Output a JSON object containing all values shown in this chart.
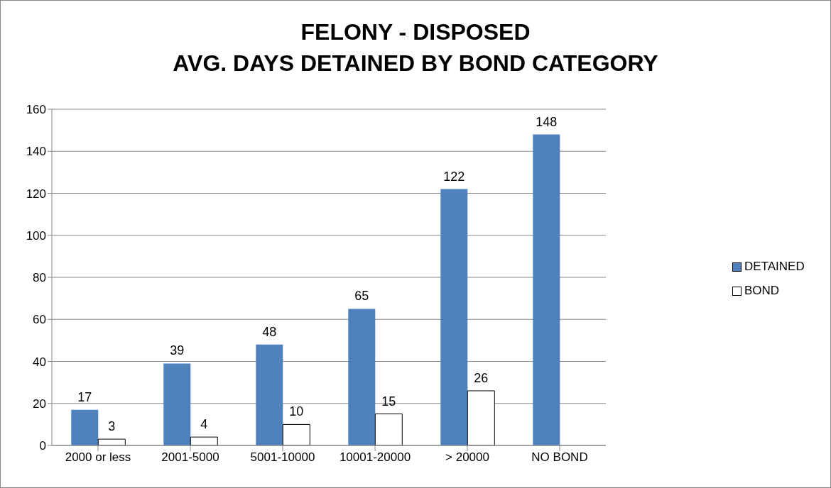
{
  "chart_data": {
    "type": "bar",
    "title": "FELONY - DISPOSED\nAVG. DAYS DETAINED BY BOND CATEGORY",
    "categories": [
      "2000 or less",
      "2001-5000",
      "5001-10000",
      "10001-20000",
      "> 20000",
      "NO BOND"
    ],
    "series": [
      {
        "name": "DETAINED",
        "color": "#4f81bd",
        "values": [
          17,
          39,
          48,
          65,
          122,
          148
        ]
      },
      {
        "name": "BOND",
        "color": "#ffffff",
        "values": [
          3,
          4,
          10,
          15,
          26,
          null
        ]
      }
    ],
    "ylim": [
      0,
      160
    ],
    "yticks": [
      0,
      20,
      40,
      60,
      80,
      100,
      120,
      140,
      160
    ],
    "grid": "y",
    "legend": "right",
    "data_labels": true
  }
}
